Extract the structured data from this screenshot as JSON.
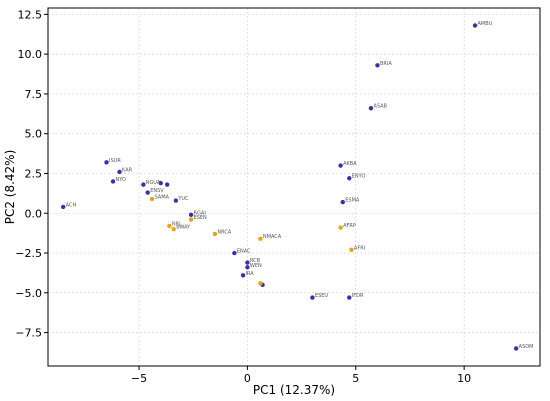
{
  "chart_data": {
    "type": "scatter",
    "title": "",
    "xlabel": "PC1 (12.37%)",
    "ylabel": "PC2 (8.42%)",
    "xlim": [
      -9.2,
      13.5
    ],
    "ylim": [
      -9.6,
      12.9
    ],
    "xticks": [
      -5,
      0,
      5,
      10
    ],
    "yticks": [
      -7.5,
      -5.0,
      -2.5,
      0.0,
      2.5,
      5.0,
      7.5,
      10.0,
      12.5
    ],
    "xtick_labels": [
      "−5",
      "0",
      "5",
      "10"
    ],
    "ytick_labels": [
      "−7.5",
      "−5.0",
      "−2.5",
      "0.0",
      "2.5",
      "5.0",
      "7.5",
      "10.0",
      "12.5"
    ],
    "grid": true,
    "colors": {
      "blue": "#3b2fae",
      "orange": "#e8a21a"
    },
    "series": [
      {
        "color": "blue",
        "points": [
          {
            "x": 10.5,
            "y": 11.8,
            "label": "AMBU"
          },
          {
            "x": 6.0,
            "y": 9.3,
            "label": "BRIA"
          },
          {
            "x": 5.7,
            "y": 6.6,
            "label": "ASAB"
          },
          {
            "x": 4.3,
            "y": 3.0,
            "label": "AKBA"
          },
          {
            "x": 4.7,
            "y": 2.2,
            "label": "ENYO"
          },
          {
            "x": 4.4,
            "y": 0.7,
            "label": "ESMA"
          },
          {
            "x": -6.5,
            "y": 3.2,
            "label": "ISUR"
          },
          {
            "x": -5.9,
            "y": 2.6,
            "label": "KAR"
          },
          {
            "x": -6.2,
            "y": 2.0,
            "label": "NYO"
          },
          {
            "x": -4.8,
            "y": 1.8,
            "label": "RGUA"
          },
          {
            "x": -4.0,
            "y": 1.9,
            "label": ""
          },
          {
            "x": -3.7,
            "y": 1.8,
            "label": ""
          },
          {
            "x": -4.6,
            "y": 1.3,
            "label": "ENSV"
          },
          {
            "x": -3.3,
            "y": 0.8,
            "label": "YUC"
          },
          {
            "x": -8.5,
            "y": 0.4,
            "label": "ACH"
          },
          {
            "x": -2.6,
            "y": -0.1,
            "label": "RGAI"
          },
          {
            "x": -0.6,
            "y": -2.5,
            "label": "ENAC"
          },
          {
            "x": 0.0,
            "y": -3.1,
            "label": "RCB"
          },
          {
            "x": 0.0,
            "y": -3.4,
            "label": "WEN"
          },
          {
            "x": -0.2,
            "y": -3.9,
            "label": "IRA"
          },
          {
            "x": 0.7,
            "y": -4.5,
            "label": ""
          },
          {
            "x": 3.0,
            "y": -5.3,
            "label": "ESEU"
          },
          {
            "x": 4.7,
            "y": -5.3,
            "label": "IFDR"
          },
          {
            "x": 12.4,
            "y": -8.5,
            "label": "ASOM"
          }
        ]
      },
      {
        "color": "orange",
        "points": [
          {
            "x": -4.4,
            "y": 0.9,
            "label": "SAMA"
          },
          {
            "x": -2.6,
            "y": -0.4,
            "label": "ESEN"
          },
          {
            "x": -3.6,
            "y": -0.8,
            "label": "RPL"
          },
          {
            "x": -3.4,
            "y": -1.0,
            "label": "BWAY"
          },
          {
            "x": -1.5,
            "y": -1.3,
            "label": "NRCA"
          },
          {
            "x": 0.6,
            "y": -1.6,
            "label": "NMACA"
          },
          {
            "x": 4.3,
            "y": -0.9,
            "label": "AFRP"
          },
          {
            "x": 4.8,
            "y": -2.3,
            "label": "AFRI"
          },
          {
            "x": 0.6,
            "y": -4.4,
            "label": ""
          }
        ]
      }
    ]
  }
}
